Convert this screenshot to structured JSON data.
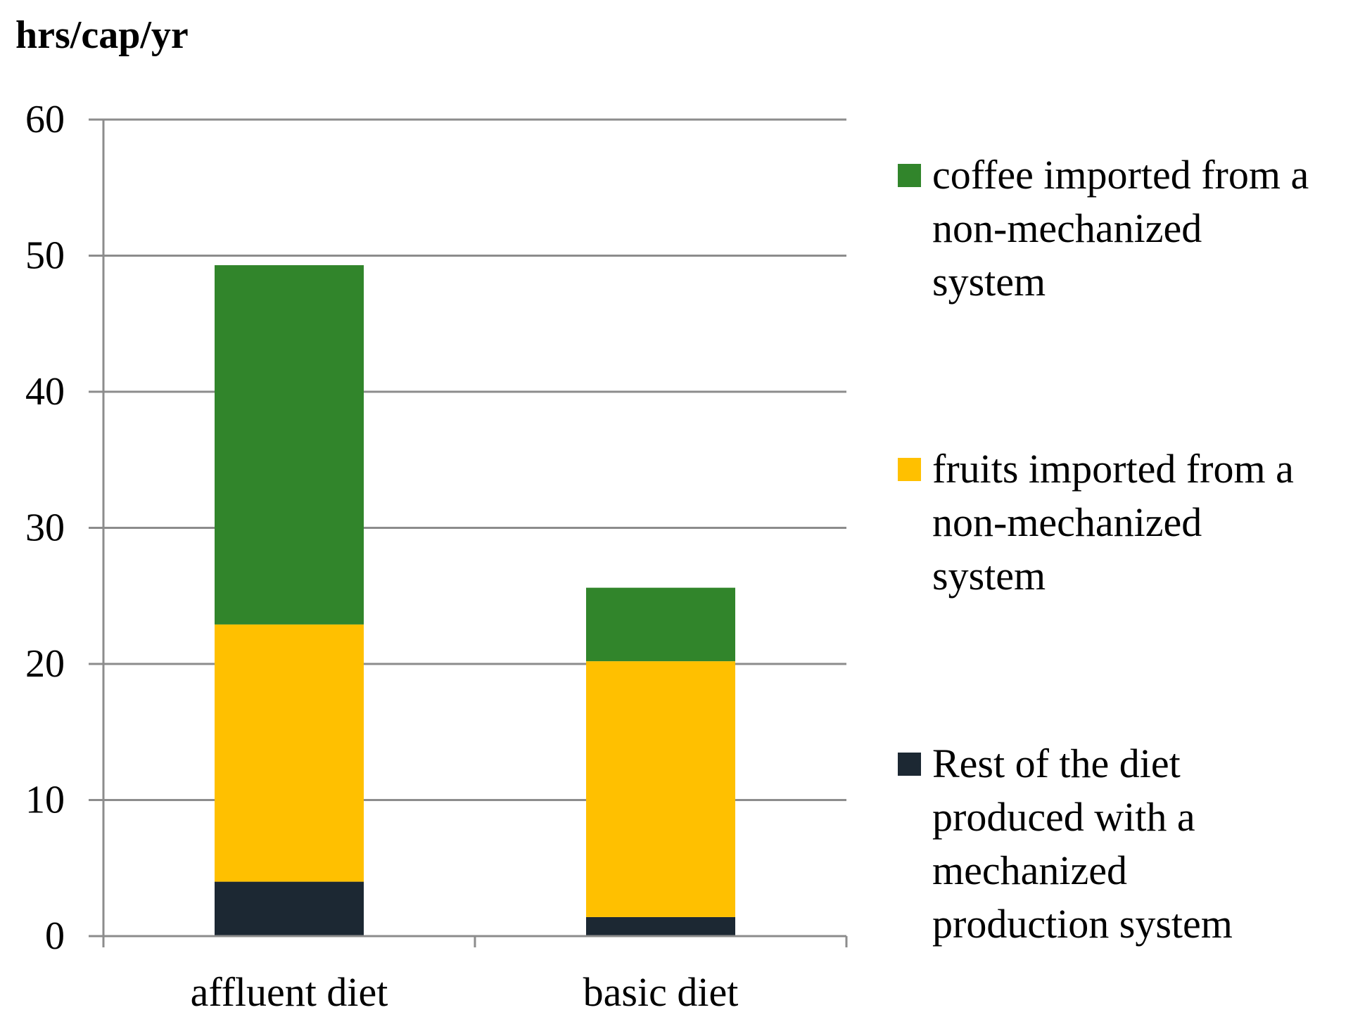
{
  "chart_data": {
    "type": "bar",
    "stacked": true,
    "ylabel": "hrs/cap/yr",
    "ylim": [
      0,
      60
    ],
    "yticks": [
      0,
      10,
      20,
      30,
      40,
      50,
      60
    ],
    "grid": true,
    "legend_position": "right",
    "categories": [
      "affluent diet",
      "basic diet"
    ],
    "series": [
      {
        "name": "Rest of the diet produced with a mechanized production system",
        "legend_lines": [
          "Rest of the diet",
          "produced with a",
          "mechanized",
          "production system"
        ],
        "color": "#1c2833",
        "values": [
          4.0,
          1.4
        ]
      },
      {
        "name": "fruits imported from a non-mechanized system",
        "legend_lines": [
          "fruits imported from a",
          "non-mechanized",
          "system"
        ],
        "color": "#ffc000",
        "values": [
          18.9,
          18.8
        ]
      },
      {
        "name": "coffee imported from a non-mechanized system",
        "legend_lines": [
          "coffee imported from a",
          "non-mechanized",
          "system"
        ],
        "color": "#31852b",
        "values": [
          26.4,
          5.4
        ]
      }
    ]
  }
}
